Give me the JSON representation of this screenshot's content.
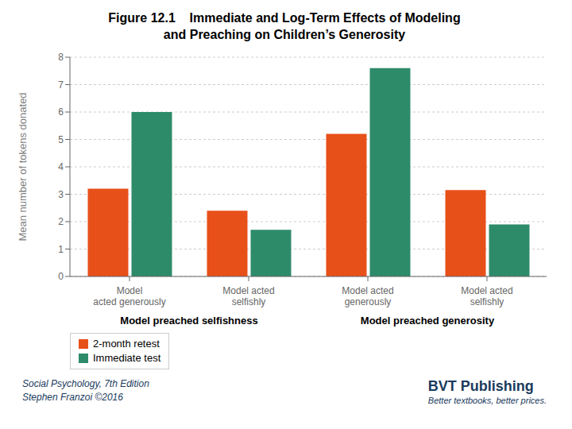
{
  "chart_data": {
    "type": "bar",
    "title": "Figure 12.1    Immediate and Log-Term Effects of Modeling\nand Preaching on Children’s Generosity",
    "categories": [
      "Model\nacted generously",
      "Model acted\nselfishly",
      "Model acted\ngenerously",
      "Model acted\nselfishly"
    ],
    "series": [
      {
        "name": "2-month retest",
        "color": "#E8501A",
        "values": [
          3.2,
          2.4,
          5.2,
          3.15
        ]
      },
      {
        "name": "Immediate test",
        "color": "#2E8B6A",
        "values": [
          6.0,
          1.7,
          7.6,
          1.9
        ]
      }
    ],
    "ylabel": "Mean number of tokens donated",
    "ylim": [
      0,
      8
    ],
    "yticks": [
      0,
      1,
      2,
      3,
      4,
      5,
      6,
      7,
      8
    ],
    "grid": true,
    "legend": "bottom",
    "annotations": [
      "Model preached selfishness",
      "Model preached generosity",
      "Social Psychology, 7th Edition",
      "Stephen Franzoi ©2016",
      "BVT Publishing",
      "Better textbooks, better prices."
    ]
  }
}
